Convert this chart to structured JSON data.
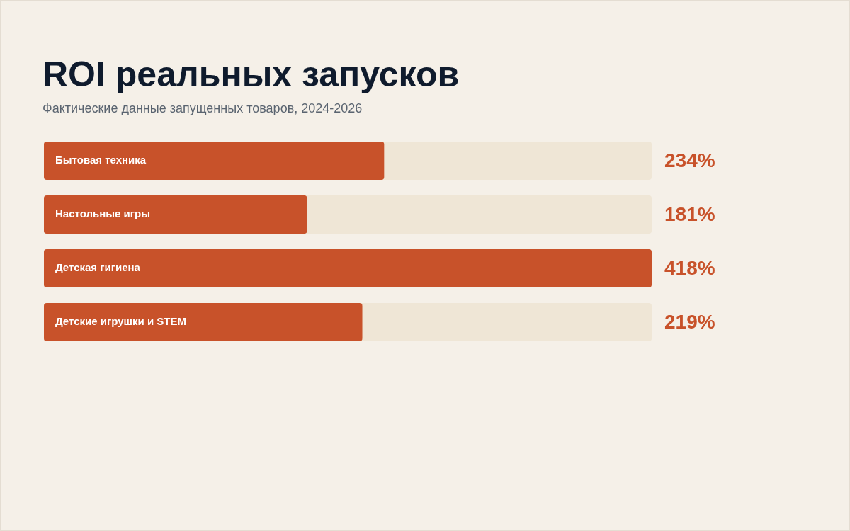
{
  "chart_data": {
    "type": "bar",
    "orientation": "horizontal",
    "title": "ROI реальных запусков",
    "subtitle": "Фактические данные запущенных товаров, 2024-2026",
    "categories": [
      "Бытовая техника",
      "Настольные игры",
      "Детская гигиена",
      "Детские игрушки и STEM"
    ],
    "values": [
      234,
      181,
      418,
      219
    ],
    "color": "#c8522a",
    "value_labels": [
      "234%",
      "181%",
      "418%",
      "219%"
    ],
    "xlim": [
      0,
      418
    ],
    "tick_labels": false
  }
}
